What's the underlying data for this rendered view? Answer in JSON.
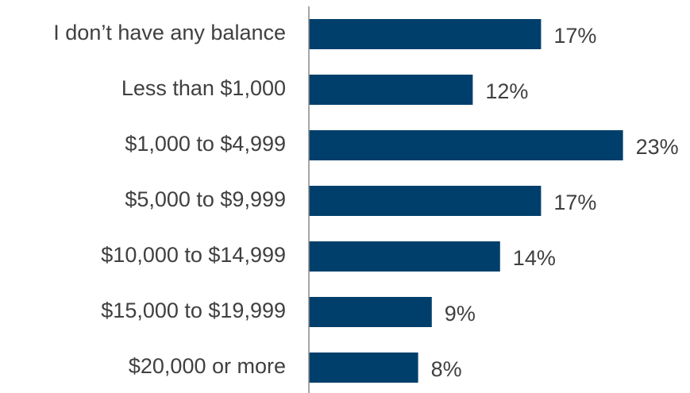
{
  "chart_data": {
    "type": "bar",
    "orientation": "horizontal",
    "categories": [
      "I don’t have any balance",
      "Less than $1,000",
      "$1,000 to $4,999",
      "$5,000 to $9,999",
      "$10,000 to $14,999",
      "$15,000 to $19,999",
      "$20,000 or more"
    ],
    "values": [
      17,
      12,
      23,
      17,
      14,
      9,
      8
    ],
    "value_labels": [
      "17%",
      "12%",
      "23%",
      "17%",
      "14%",
      "9%",
      "8%"
    ],
    "color": "#003f6b"
  }
}
